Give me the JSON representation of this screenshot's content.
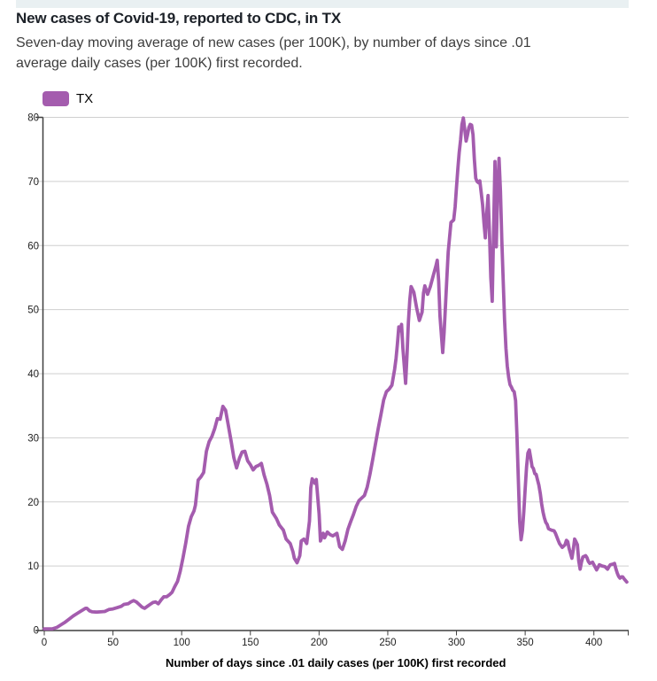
{
  "header": {
    "title": "New cases of Covid-19, reported to CDC, in TX",
    "subtitle": "Seven-day moving average of new cases (per 100K), by number of days since .01 average daily cases (per 100K) first recorded."
  },
  "legend": {
    "label": "TX",
    "swatch_color": "#a45cae"
  },
  "colors": {
    "accent_bar": "#e9f0f2",
    "line": "#a45cae",
    "grid": "#cfcfcf",
    "axis": "#3f3f3f",
    "tick_text": "#222222"
  },
  "chart_data": {
    "type": "line",
    "title": "New cases of Covid-19, reported to CDC, in TX",
    "subtitle": "Seven-day moving average of new cases (per 100K), by number of days since .01 average daily cases (per 100K) first recorded.",
    "xlabel": "Number of days since .01 daily cases (per 100K) first recorded",
    "ylabel": "",
    "xlim": [
      0,
      425
    ],
    "ylim": [
      0,
      80
    ],
    "xticks": [
      0,
      50,
      100,
      150,
      200,
      250,
      300,
      350,
      400
    ],
    "yticks": [
      0,
      10,
      20,
      30,
      40,
      50,
      60,
      70,
      80
    ],
    "grid": "horizontal",
    "legend_position": "top-left",
    "series": [
      {
        "name": "TX",
        "color": "#a45cae",
        "points": [
          [
            0,
            0.2
          ],
          [
            3,
            0.2
          ],
          [
            6,
            0.2
          ],
          [
            9,
            0.4
          ],
          [
            12,
            0.8
          ],
          [
            15,
            1.2
          ],
          [
            18,
            1.7
          ],
          [
            21,
            2.2
          ],
          [
            24,
            2.6
          ],
          [
            27,
            3.0
          ],
          [
            30,
            3.4
          ],
          [
            31,
            3.4
          ],
          [
            33,
            3.0
          ],
          [
            35,
            2.85
          ],
          [
            38,
            2.8
          ],
          [
            41,
            2.85
          ],
          [
            44,
            2.9
          ],
          [
            47,
            3.2
          ],
          [
            50,
            3.3
          ],
          [
            53,
            3.5
          ],
          [
            56,
            3.7
          ],
          [
            58,
            4.0
          ],
          [
            61,
            4.1
          ],
          [
            63,
            4.4
          ],
          [
            65,
            4.6
          ],
          [
            67,
            4.4
          ],
          [
            69,
            4.0
          ],
          [
            71,
            3.6
          ],
          [
            73,
            3.4
          ],
          [
            75,
            3.7
          ],
          [
            77,
            4.0
          ],
          [
            79,
            4.3
          ],
          [
            81,
            4.4
          ],
          [
            83,
            4.1
          ],
          [
            85,
            4.7
          ],
          [
            87,
            5.2
          ],
          [
            89,
            5.2
          ],
          [
            91,
            5.5
          ],
          [
            93,
            5.9
          ],
          [
            95,
            6.8
          ],
          [
            97,
            7.6
          ],
          [
            99,
            9.2
          ],
          [
            101,
            11.3
          ],
          [
            103,
            13.6
          ],
          [
            105,
            16.2
          ],
          [
            107,
            17.7
          ],
          [
            109,
            18.6
          ],
          [
            110,
            19.5
          ],
          [
            112,
            23.4
          ],
          [
            114,
            23.9
          ],
          [
            116,
            24.6
          ],
          [
            118,
            27.9
          ],
          [
            120,
            29.4
          ],
          [
            122,
            30.2
          ],
          [
            124,
            31.4
          ],
          [
            126,
            33.0
          ],
          [
            128,
            32.9
          ],
          [
            130,
            34.9
          ],
          [
            132,
            34.3
          ],
          [
            134,
            31.9
          ],
          [
            136,
            29.5
          ],
          [
            138,
            26.9
          ],
          [
            140,
            25.3
          ],
          [
            142,
            26.8
          ],
          [
            144,
            27.8
          ],
          [
            146,
            27.9
          ],
          [
            148,
            26.4
          ],
          [
            150,
            25.8
          ],
          [
            152,
            25.0
          ],
          [
            154,
            25.5
          ],
          [
            156,
            25.7
          ],
          [
            158,
            26.0
          ],
          [
            160,
            24.2
          ],
          [
            162,
            22.8
          ],
          [
            164,
            21.0
          ],
          [
            166,
            18.4
          ],
          [
            169,
            17.4
          ],
          [
            171,
            16.4
          ],
          [
            174,
            15.6
          ],
          [
            176,
            14.2
          ],
          [
            179,
            13.5
          ],
          [
            181,
            12.2
          ],
          [
            182,
            11.2
          ],
          [
            184,
            10.5
          ],
          [
            186,
            11.6
          ],
          [
            187,
            13.9
          ],
          [
            189,
            14.2
          ],
          [
            191,
            13.5
          ],
          [
            193,
            17.0
          ],
          [
            194,
            22.2
          ],
          [
            195,
            23.6
          ],
          [
            197,
            22.9
          ],
          [
            198,
            23.5
          ],
          [
            200,
            18.1
          ],
          [
            201,
            13.9
          ],
          [
            203,
            15.1
          ],
          [
            204,
            14.4
          ],
          [
            206,
            15.3
          ],
          [
            208,
            14.9
          ],
          [
            210,
            14.7
          ],
          [
            213,
            15.1
          ],
          [
            215,
            13.0
          ],
          [
            217,
            12.6
          ],
          [
            219,
            13.9
          ],
          [
            221,
            15.7
          ],
          [
            223,
            16.9
          ],
          [
            225,
            18.0
          ],
          [
            227,
            19.3
          ],
          [
            229,
            20.2
          ],
          [
            231,
            20.6
          ],
          [
            233,
            21.0
          ],
          [
            235,
            22.3
          ],
          [
            237,
            24.3
          ],
          [
            239,
            26.6
          ],
          [
            241,
            29.0
          ],
          [
            243,
            31.4
          ],
          [
            245,
            33.6
          ],
          [
            247,
            35.9
          ],
          [
            249,
            37.2
          ],
          [
            251,
            37.6
          ],
          [
            253,
            38.2
          ],
          [
            255,
            40.7
          ],
          [
            256,
            42.4
          ],
          [
            257,
            44.6
          ],
          [
            258,
            47.3
          ],
          [
            259,
            46.7
          ],
          [
            260,
            47.7
          ],
          [
            261,
            44.0
          ],
          [
            263,
            38.5
          ],
          [
            264,
            43.0
          ],
          [
            265,
            48.0
          ],
          [
            266,
            51.5
          ],
          [
            267,
            53.6
          ],
          [
            269,
            52.7
          ],
          [
            271,
            50.3
          ],
          [
            273,
            48.3
          ],
          [
            275,
            49.6
          ],
          [
            276,
            52.6
          ],
          [
            277,
            53.7
          ],
          [
            279,
            52.4
          ],
          [
            281,
            53.6
          ],
          [
            283,
            55.2
          ],
          [
            285,
            56.8
          ],
          [
            286,
            57.7
          ],
          [
            287,
            54.5
          ],
          [
            288,
            49.0
          ],
          [
            290,
            43.3
          ],
          [
            291,
            46.5
          ],
          [
            292,
            50.6
          ],
          [
            293,
            55.0
          ],
          [
            294,
            59.0
          ],
          [
            296,
            63.6
          ],
          [
            298,
            64.0
          ],
          [
            299,
            66.0
          ],
          [
            300,
            69.0
          ],
          [
            301,
            72.0
          ],
          [
            302,
            74.5
          ],
          [
            303,
            76.5
          ],
          [
            304,
            78.9
          ],
          [
            305,
            79.9
          ],
          [
            306,
            78.2
          ],
          [
            307,
            76.3
          ],
          [
            308,
            77.2
          ],
          [
            309,
            78.4
          ],
          [
            310,
            78.9
          ],
          [
            311,
            78.8
          ],
          [
            312,
            77.3
          ],
          [
            313,
            73.5
          ],
          [
            314,
            70.5
          ],
          [
            315,
            70.0
          ],
          [
            316,
            69.8
          ],
          [
            317,
            70.1
          ],
          [
            318,
            68.2
          ],
          [
            319,
            66.4
          ],
          [
            320,
            63.5
          ],
          [
            321,
            61.2
          ],
          [
            322,
            65.0
          ],
          [
            323,
            67.8
          ],
          [
            324,
            62.0
          ],
          [
            325,
            55.0
          ],
          [
            326,
            51.3
          ],
          [
            327,
            62.0
          ],
          [
            328,
            73.1
          ],
          [
            329,
            59.8
          ],
          [
            330,
            69.0
          ],
          [
            331,
            73.6
          ],
          [
            332,
            68.5
          ],
          [
            333,
            61.0
          ],
          [
            334,
            54.5
          ],
          [
            335,
            48.5
          ],
          [
            336,
            44.0
          ],
          [
            337,
            41.2
          ],
          [
            338,
            39.4
          ],
          [
            339,
            38.3
          ],
          [
            340,
            37.9
          ],
          [
            341,
            37.4
          ],
          [
            342,
            37.2
          ],
          [
            343,
            35.8
          ],
          [
            344,
            30.5
          ],
          [
            345,
            23.5
          ],
          [
            346,
            17.0
          ],
          [
            347,
            14.1
          ],
          [
            348,
            15.5
          ],
          [
            349,
            18.5
          ],
          [
            350,
            22.0
          ],
          [
            351,
            25.5
          ],
          [
            352,
            27.6
          ],
          [
            353,
            28.1
          ],
          [
            354,
            26.9
          ],
          [
            355,
            25.5
          ],
          [
            356,
            25.2
          ],
          [
            357,
            24.4
          ],
          [
            358,
            24.3
          ],
          [
            359,
            23.4
          ],
          [
            360,
            22.6
          ],
          [
            361,
            21.3
          ],
          [
            362,
            19.7
          ],
          [
            363,
            18.4
          ],
          [
            364,
            17.5
          ],
          [
            365,
            16.8
          ],
          [
            366,
            16.5
          ],
          [
            367,
            15.8
          ],
          [
            369,
            15.6
          ],
          [
            371,
            15.5
          ],
          [
            372,
            15.1
          ],
          [
            374,
            14.0
          ],
          [
            375,
            13.5
          ],
          [
            377,
            12.9
          ],
          [
            379,
            13.3
          ],
          [
            380,
            14.0
          ],
          [
            381,
            13.8
          ],
          [
            382,
            12.7
          ],
          [
            383,
            12.0
          ],
          [
            384,
            11.2
          ],
          [
            385,
            12.5
          ],
          [
            386,
            14.2
          ],
          [
            387,
            13.8
          ],
          [
            388,
            13.3
          ],
          [
            389,
            10.8
          ],
          [
            390,
            9.5
          ],
          [
            391,
            10.6
          ],
          [
            392,
            11.4
          ],
          [
            394,
            11.6
          ],
          [
            395,
            11.3
          ],
          [
            396,
            10.7
          ],
          [
            397,
            10.4
          ],
          [
            399,
            10.6
          ],
          [
            400,
            10.2
          ],
          [
            401,
            9.8
          ],
          [
            402,
            9.4
          ],
          [
            403,
            9.8
          ],
          [
            404,
            10.2
          ],
          [
            406,
            10.0
          ],
          [
            408,
            9.9
          ],
          [
            410,
            9.5
          ],
          [
            411,
            9.9
          ],
          [
            412,
            10.2
          ],
          [
            414,
            10.3
          ],
          [
            415,
            10.4
          ],
          [
            416,
            9.6
          ],
          [
            417,
            8.9
          ],
          [
            418,
            8.4
          ],
          [
            419,
            8.1
          ],
          [
            420,
            8.3
          ],
          [
            421,
            8.3
          ],
          [
            422,
            8.0
          ],
          [
            424,
            7.5
          ]
        ]
      }
    ]
  }
}
